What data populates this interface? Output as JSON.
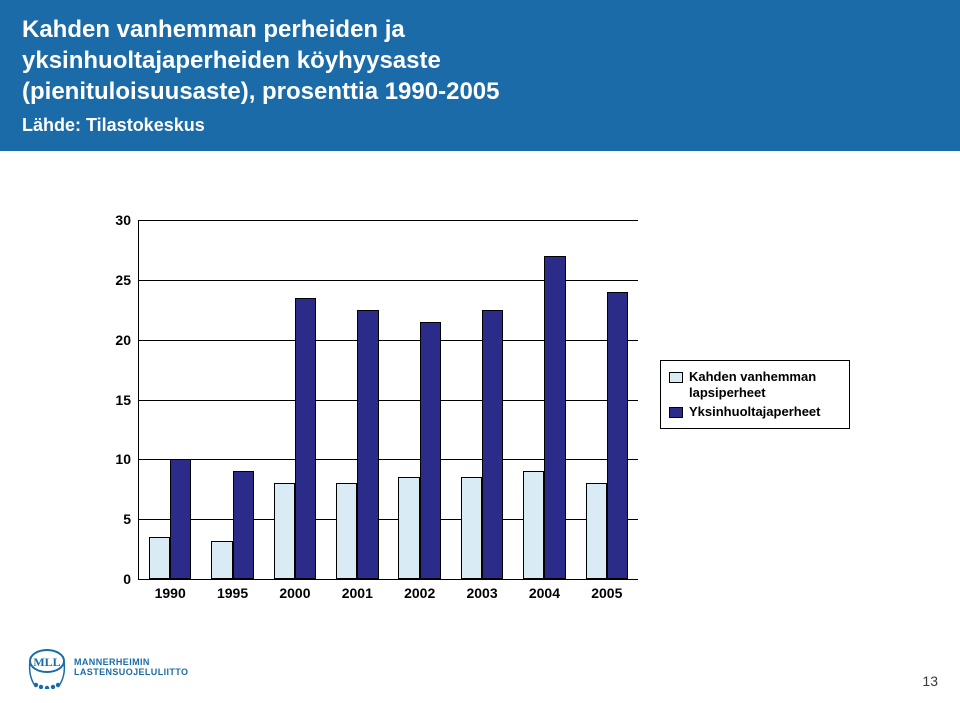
{
  "header": {
    "title_line1": "Kahden vanhemman perheiden ja",
    "title_line2": "yksinhuoltajaperheiden köyhyysaste",
    "title_line3": "(pienituloisuusaste), prosenttia 1990-2005",
    "subtitle": "Lähde: Tilastokeskus",
    "title_fontsize": 24,
    "subtitle_fontsize": 18,
    "band_color": "#1b6ba8",
    "text_color": "#ffffff"
  },
  "chart": {
    "type": "bar",
    "categories": [
      "1990",
      "1995",
      "2000",
      "2001",
      "2002",
      "2003",
      "2004",
      "2005"
    ],
    "series": [
      {
        "name": "Kahden vanhemman lapsiperheet",
        "color": "#d9ecf5",
        "values": [
          3.5,
          3.2,
          8.0,
          8.0,
          8.5,
          8.5,
          9.0,
          8.0
        ]
      },
      {
        "name": "Yksinhuoltajaperheet",
        "color": "#2b2b8a",
        "values": [
          10.0,
          9.0,
          23.5,
          22.5,
          21.5,
          22.5,
          27.0,
          24.0
        ]
      }
    ],
    "ylim": [
      0,
      30
    ],
    "ytick_step": 5,
    "y_ticks": [
      0,
      5,
      10,
      15,
      20,
      25,
      30
    ],
    "tick_fontsize": 14,
    "bar_border_color": "#000000",
    "grid_color": "#000000",
    "background_color": "#ffffff",
    "group_width_ratio": 0.68,
    "legend": {
      "fontsize": 13,
      "border_color": "#000000"
    }
  },
  "footer": {
    "logo_text_top": "MANNERHEIMIN",
    "logo_text_bottom": "LASTENSUOJELULIITTO",
    "logo_color": "#1b6ba8",
    "page_number": "13"
  }
}
